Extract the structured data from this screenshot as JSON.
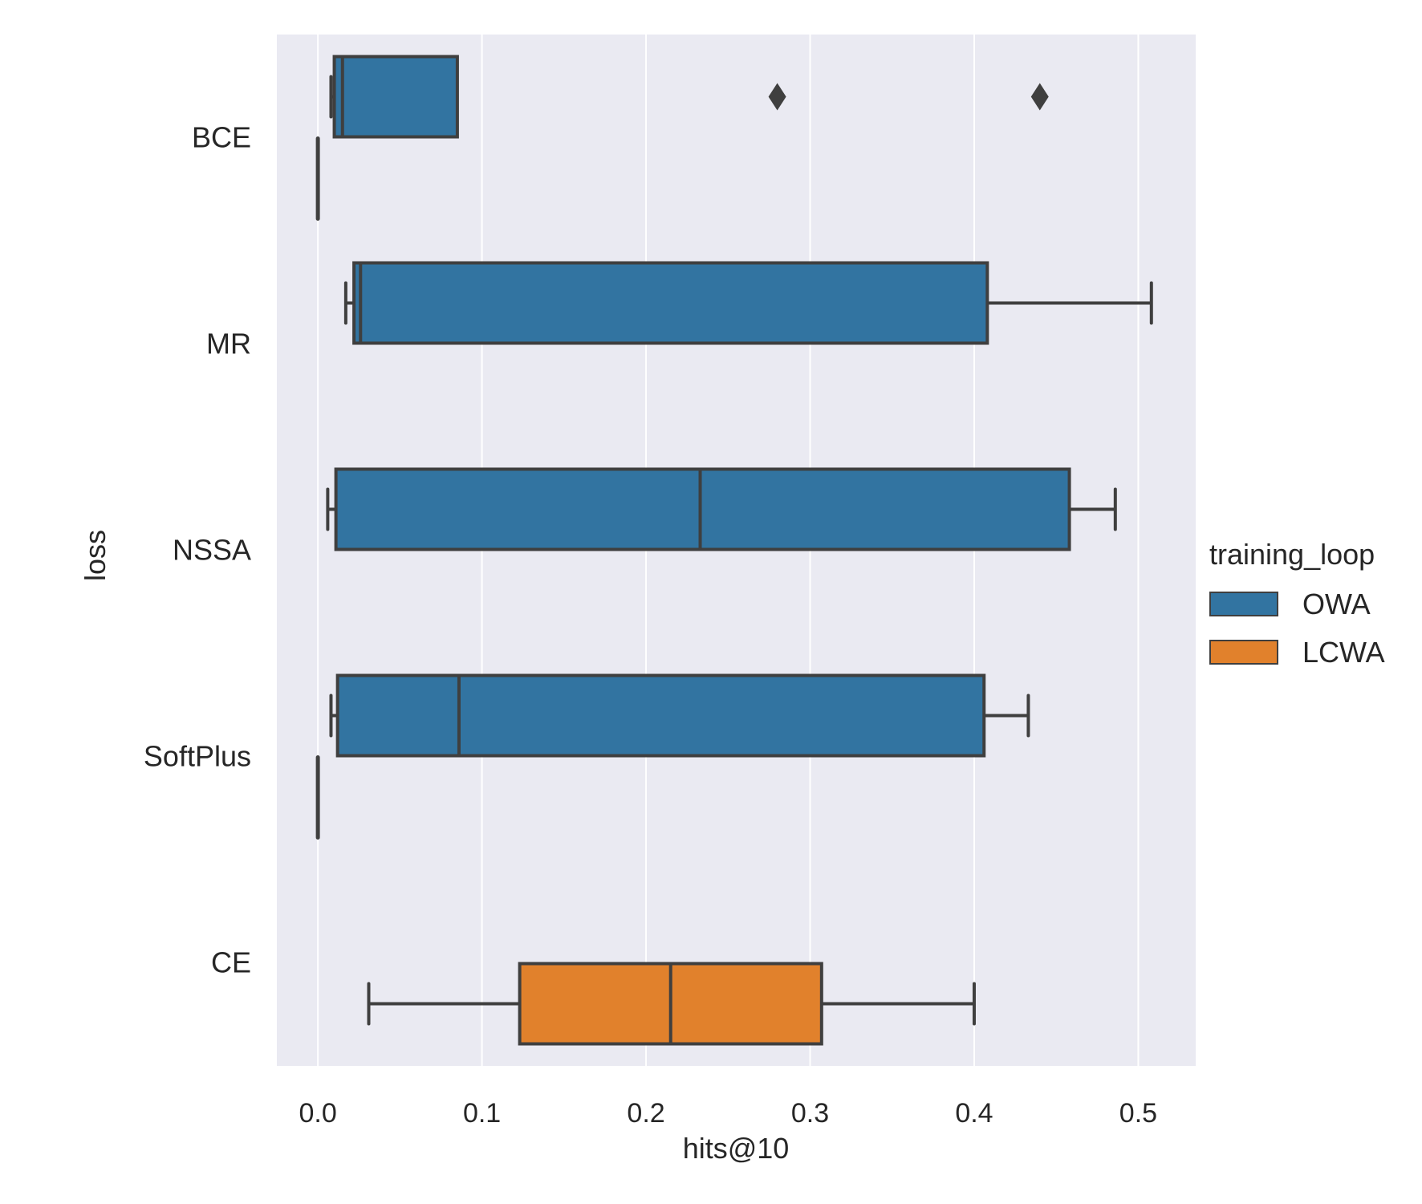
{
  "chart_data": {
    "type": "box",
    "title": "",
    "xlabel": "hits@10",
    "ylabel": "loss",
    "xlim": [
      -0.025,
      0.535
    ],
    "x_ticks": [
      0.0,
      0.1,
      0.2,
      0.3,
      0.4,
      0.5
    ],
    "x_tick_labels": [
      "0.0",
      "0.1",
      "0.2",
      "0.3",
      "0.4",
      "0.5"
    ],
    "grid": "vertical",
    "orientation": "horizontal",
    "categories": [
      "BCE",
      "MR",
      "NSSA",
      "SoftPlus",
      "CE"
    ],
    "legend": {
      "title": "training_loop",
      "placement": "right",
      "entries": [
        {
          "label": "OWA",
          "color": "#3274a1"
        },
        {
          "label": "LCWA",
          "color": "#e1812c"
        }
      ]
    },
    "series": [
      {
        "name": "OWA",
        "color": "#3274a1",
        "boxes": [
          {
            "category": "BCE",
            "whislo": 0.008,
            "q1": 0.01,
            "med": 0.015,
            "q3": 0.085,
            "whishi": 0.085,
            "fliers": [
              0.28,
              0.44
            ]
          },
          {
            "category": "MR",
            "whislo": 0.017,
            "q1": 0.022,
            "med": 0.026,
            "q3": 0.408,
            "whishi": 0.508,
            "fliers": []
          },
          {
            "category": "NSSA",
            "whislo": 0.006,
            "q1": 0.011,
            "med": 0.233,
            "q3": 0.458,
            "whishi": 0.486,
            "fliers": []
          },
          {
            "category": "SoftPlus",
            "whislo": 0.008,
            "q1": 0.012,
            "med": 0.086,
            "q3": 0.406,
            "whishi": 0.433,
            "fliers": []
          }
        ]
      },
      {
        "name": "LCWA",
        "color": "#e1812c",
        "boxes": [
          {
            "category": "BCE",
            "whislo": 0.0,
            "q1": 0.0,
            "med": 0.0,
            "q3": 0.0,
            "whishi": 0.0,
            "fliers": []
          },
          {
            "category": "SoftPlus",
            "whislo": 0.0,
            "q1": 0.0,
            "med": 0.0,
            "q3": 0.0,
            "whishi": 0.0,
            "fliers": []
          },
          {
            "category": "CE",
            "whislo": 0.031,
            "q1": 0.123,
            "med": 0.215,
            "q3": 0.307,
            "whishi": 0.4,
            "fliers": []
          }
        ]
      }
    ]
  }
}
